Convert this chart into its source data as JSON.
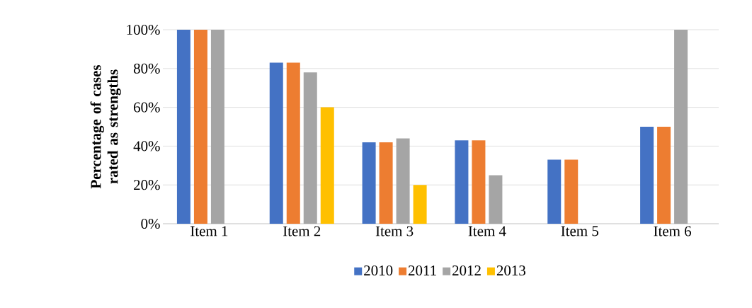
{
  "chart_data": {
    "type": "bar",
    "ylabel": "Percentage of cases rated as strengths",
    "categories": [
      "Item 1",
      "Item 2",
      "Item 3",
      "Item 4",
      "Item 5",
      "Item 6"
    ],
    "series": [
      {
        "name": "2010",
        "color": "#4472c4",
        "values": [
          100,
          83,
          42,
          43,
          33,
          50
        ]
      },
      {
        "name": "2011",
        "color": "#ed7d31",
        "values": [
          100,
          83,
          42,
          43,
          33,
          50
        ]
      },
      {
        "name": "2012",
        "color": "#a5a5a5",
        "values": [
          100,
          78,
          44,
          25,
          null,
          100
        ]
      },
      {
        "name": "2013",
        "color": "#ffc000",
        "values": [
          null,
          60,
          20,
          null,
          null,
          null
        ]
      }
    ],
    "ylim": [
      0,
      100
    ],
    "yticks": [
      {
        "value": 0,
        "label": "0%"
      },
      {
        "value": 20,
        "label": "20%"
      },
      {
        "value": 40,
        "label": "40%"
      },
      {
        "value": 60,
        "label": "60%"
      },
      {
        "value": 80,
        "label": "80%"
      },
      {
        "value": 100,
        "label": "100%"
      }
    ],
    "grid": "y",
    "legend": "bottom"
  }
}
